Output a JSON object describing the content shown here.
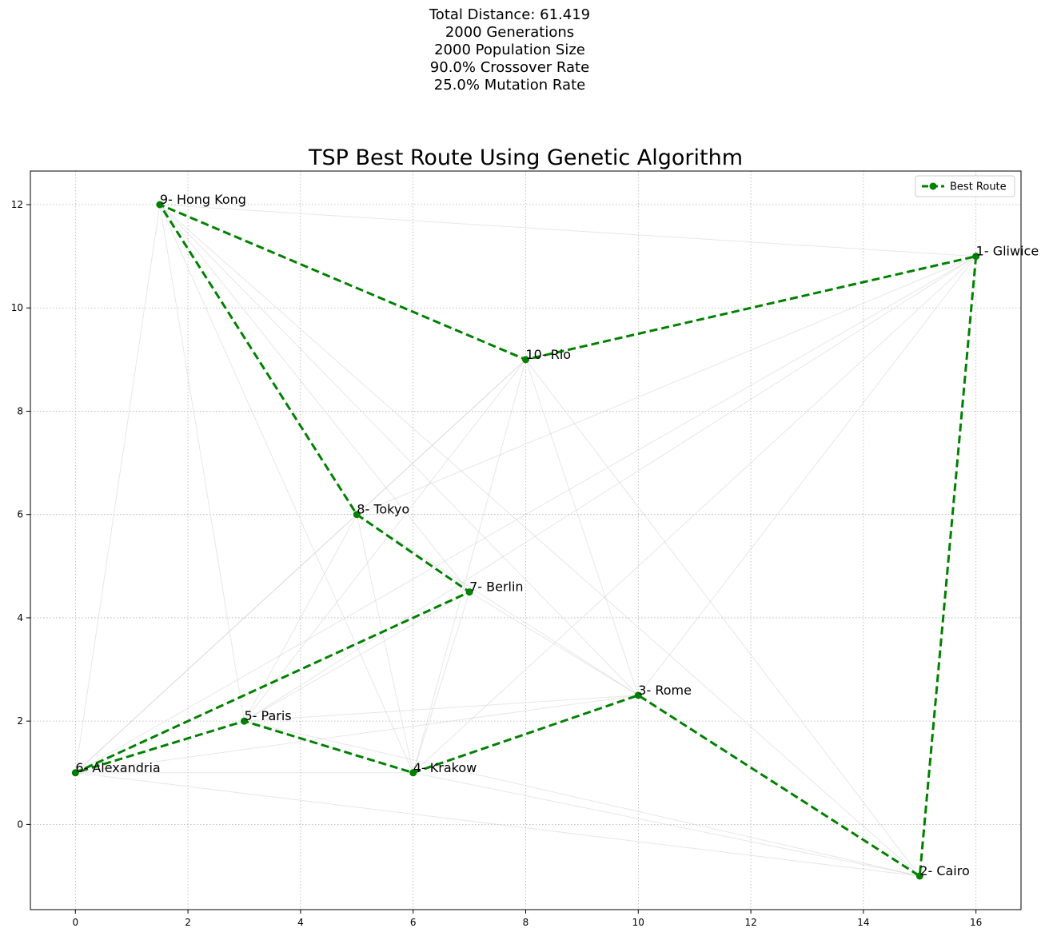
{
  "header": {
    "lines": [
      "Total Distance: 61.419",
      "2000 Generations",
      "2000 Population Size",
      "90.0% Crossover Rate",
      "25.0% Mutation Rate"
    ]
  },
  "chart_data": {
    "type": "line",
    "title": "TSP Best Route Using Genetic Algorithm",
    "xlabel": "",
    "ylabel": "",
    "xlim": [
      -0.8,
      16.8
    ],
    "ylim": [
      -1.65,
      12.65
    ],
    "xticks": [
      0,
      2,
      4,
      6,
      8,
      10,
      12,
      14,
      16
    ],
    "yticks": [
      0,
      2,
      4,
      6,
      8,
      10,
      12
    ],
    "grid": true,
    "legend_position": "top-right",
    "cities": [
      {
        "id": 1,
        "label": "1- Gliwice",
        "x": 16,
        "y": 11
      },
      {
        "id": 2,
        "label": "2- Cairo",
        "x": 15,
        "y": -1
      },
      {
        "id": 3,
        "label": "3- Rome",
        "x": 10,
        "y": 2.5
      },
      {
        "id": 4,
        "label": "4- Krakow",
        "x": 6,
        "y": 1
      },
      {
        "id": 5,
        "label": "5- Paris",
        "x": 3,
        "y": 2
      },
      {
        "id": 6,
        "label": "6- Alexandria",
        "x": 0,
        "y": 1
      },
      {
        "id": 7,
        "label": "7- Berlin",
        "x": 7,
        "y": 4.5
      },
      {
        "id": 8,
        "label": "8- Tokyo",
        "x": 5,
        "y": 6
      },
      {
        "id": 9,
        "label": "9- Hong Kong",
        "x": 1.5,
        "y": 12
      },
      {
        "id": 10,
        "label": "10- Rio",
        "x": 8,
        "y": 9
      }
    ],
    "series": [
      {
        "name": "Best Route",
        "color": "#008000",
        "route": [
          1,
          2,
          3,
          4,
          5,
          6,
          7,
          8,
          9,
          10,
          1
        ]
      }
    ],
    "background_edges": [
      [
        1,
        9
      ],
      [
        1,
        8
      ],
      [
        1,
        5
      ],
      [
        1,
        6
      ],
      [
        1,
        4
      ],
      [
        1,
        3
      ],
      [
        9,
        6
      ],
      [
        9,
        5
      ],
      [
        9,
        4
      ],
      [
        9,
        7
      ],
      [
        9,
        3
      ],
      [
        9,
        2
      ],
      [
        10,
        8
      ],
      [
        10,
        6
      ],
      [
        10,
        5
      ],
      [
        10,
        4
      ],
      [
        10,
        3
      ],
      [
        10,
        2
      ],
      [
        8,
        6
      ],
      [
        8,
        5
      ],
      [
        8,
        4
      ],
      [
        8,
        3
      ],
      [
        7,
        6
      ],
      [
        7,
        4
      ],
      [
        7,
        5
      ],
      [
        7,
        3
      ],
      [
        6,
        2
      ],
      [
        6,
        4
      ],
      [
        6,
        3
      ],
      [
        5,
        3
      ],
      [
        5,
        2
      ],
      [
        4,
        2
      ],
      [
        5,
        4
      ]
    ],
    "background_color": "#d3d3d3"
  }
}
